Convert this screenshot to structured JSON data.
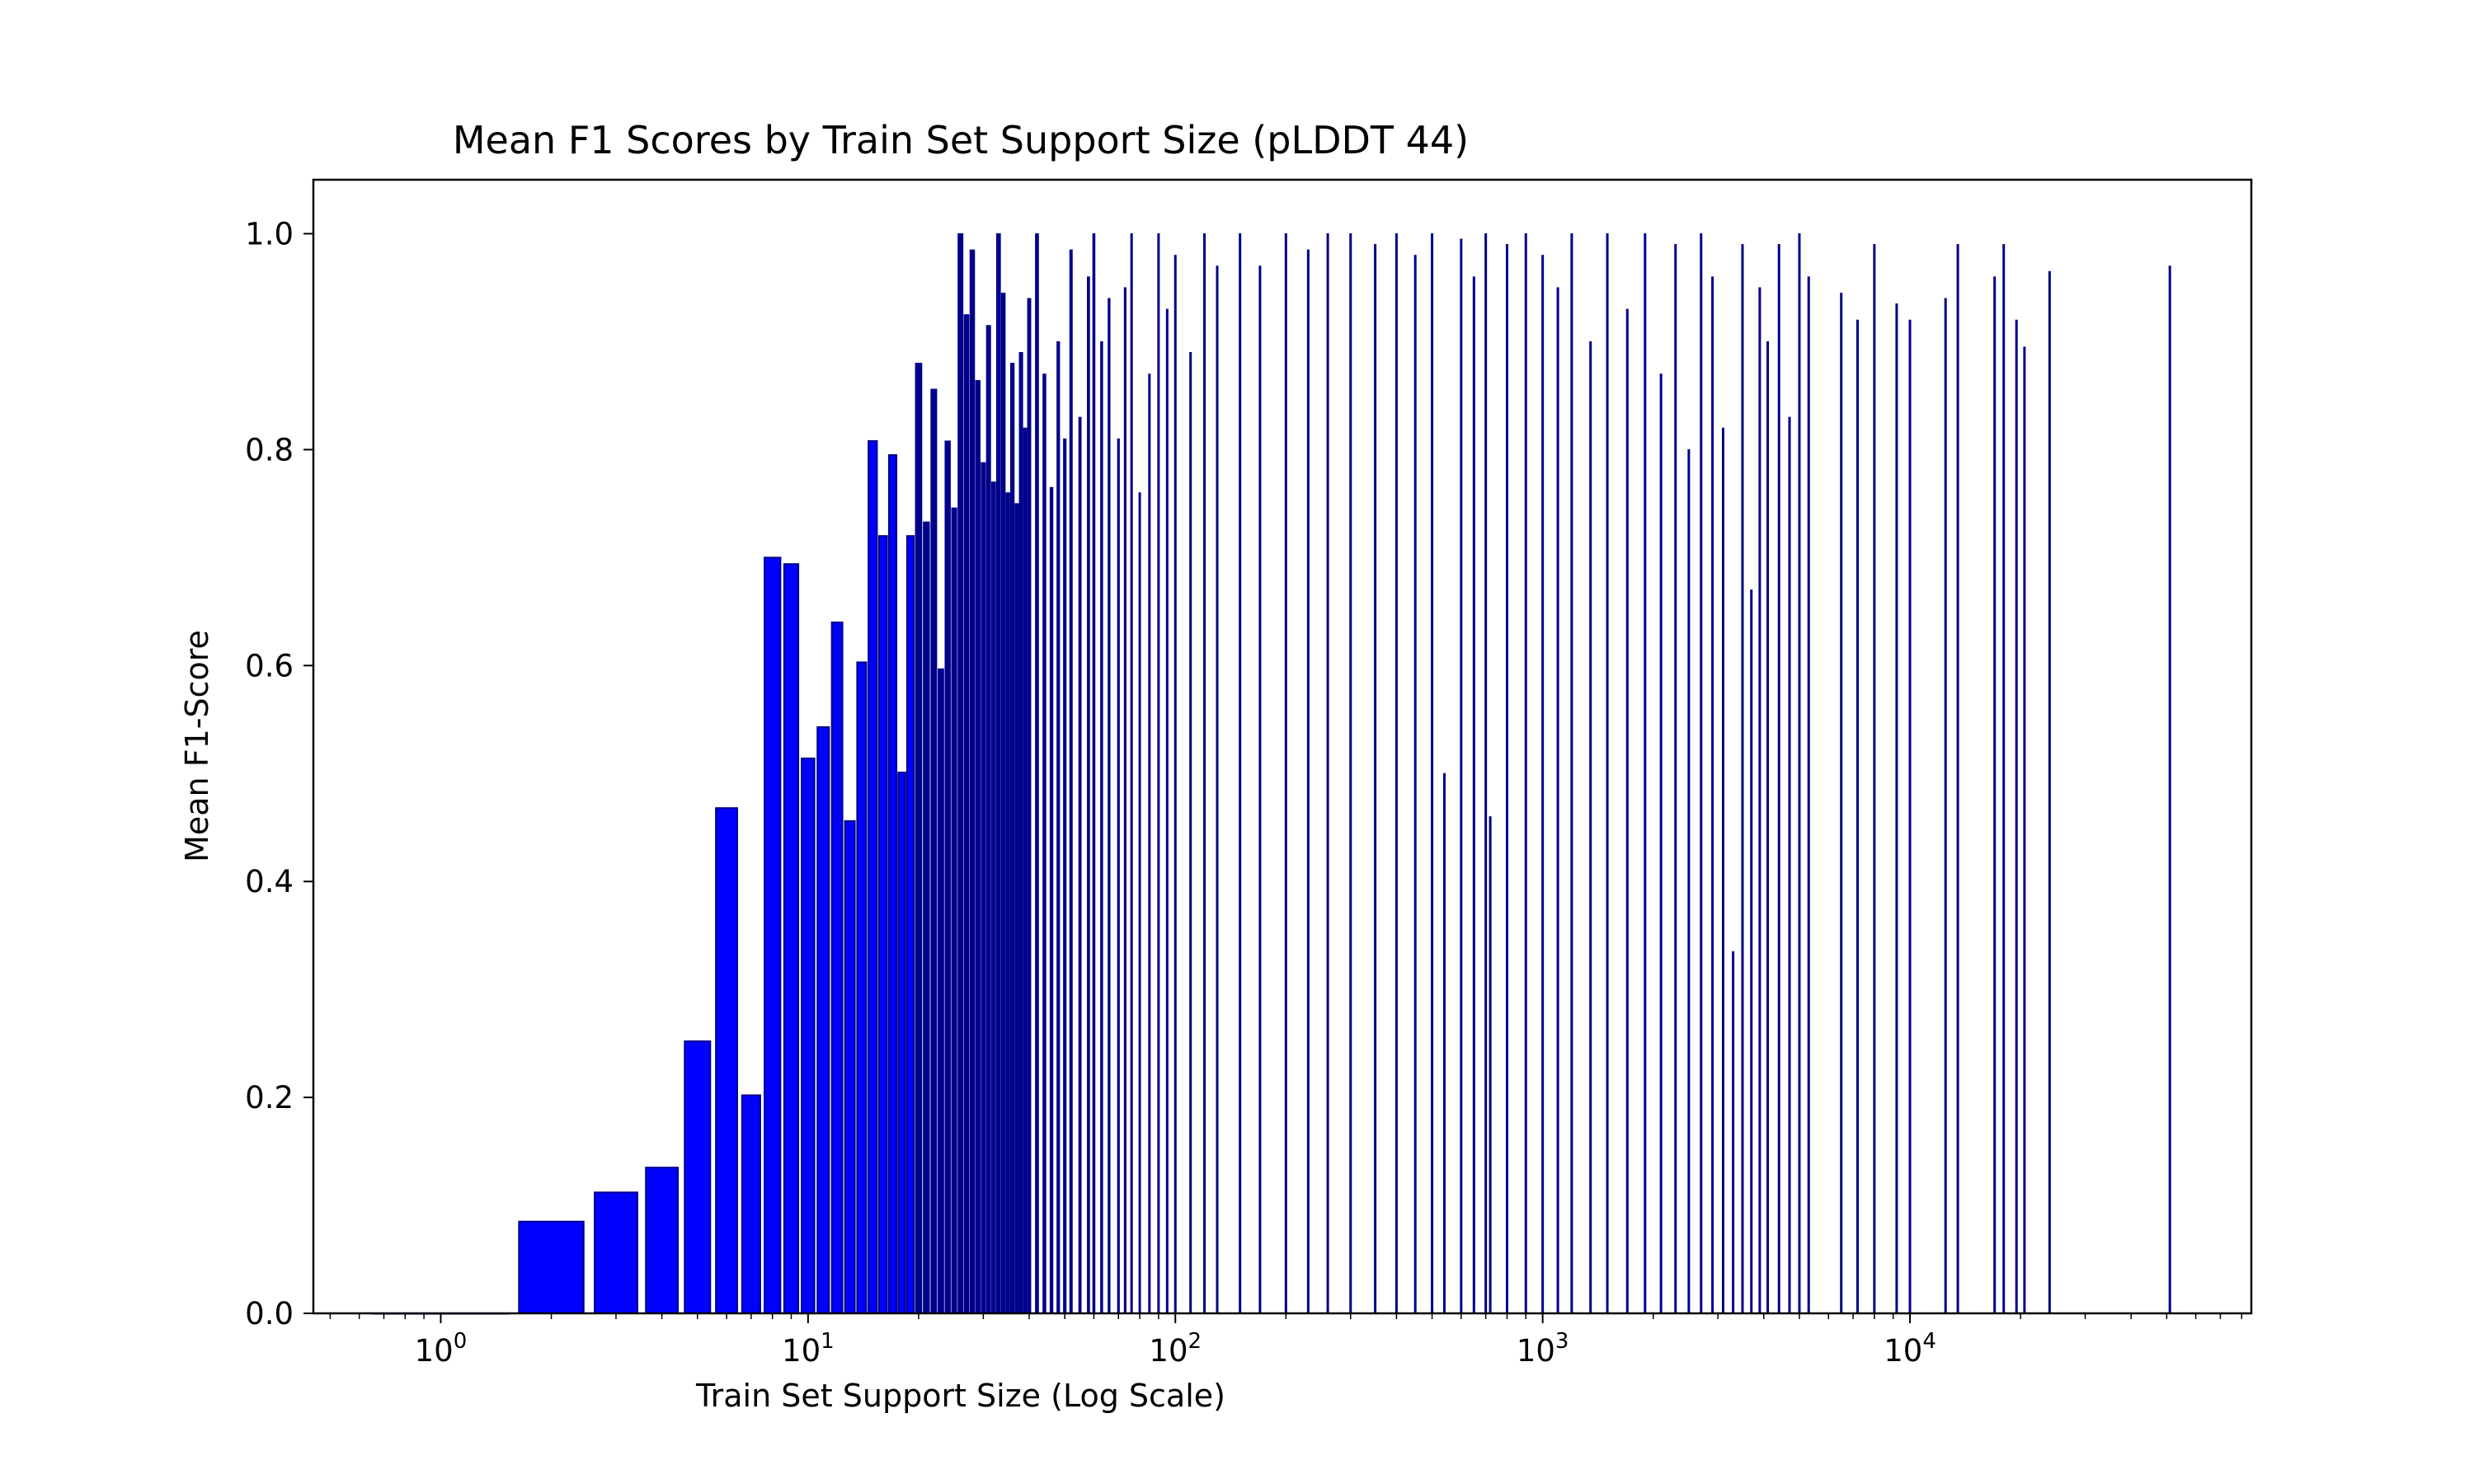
{
  "chart_data": {
    "type": "bar",
    "title": "Mean F1 Scores by Train Set Support Size (pLDDT 44)",
    "xlabel": "Train Set Support Size (Log Scale)",
    "ylabel": "Mean F1-Score",
    "xscale": "log",
    "xlim": [
      0.45,
      85000
    ],
    "ylim": [
      0.0,
      1.05
    ],
    "grid": false,
    "x_ticks": [
      {
        "base": "10",
        "exp": "0",
        "value": 1
      },
      {
        "base": "10",
        "exp": "1",
        "value": 10
      },
      {
        "base": "10",
        "exp": "2",
        "value": 100
      },
      {
        "base": "10",
        "exp": "3",
        "value": 1000
      },
      {
        "base": "10",
        "exp": "4",
        "value": 10000
      }
    ],
    "y_ticks": [
      "0.0",
      "0.2",
      "0.4",
      "0.6",
      "0.8",
      "1.0"
    ],
    "colors": {
      "bar_fill": "#0000ff",
      "bar_edge": "#00008b",
      "axes": "#000000"
    },
    "series": [
      {
        "values": [
          [
            1,
            0.0
          ],
          [
            2,
            0.085
          ],
          [
            3,
            0.112
          ],
          [
            4,
            0.135
          ],
          [
            5,
            0.252
          ],
          [
            6,
            0.468
          ],
          [
            7,
            0.202
          ],
          [
            8,
            0.7
          ],
          [
            9,
            0.694
          ],
          [
            10,
            0.514
          ],
          [
            11,
            0.543
          ],
          [
            12,
            0.64
          ],
          [
            13,
            0.456
          ],
          [
            14,
            0.603
          ],
          [
            15,
            0.808
          ],
          [
            16,
            0.72
          ],
          [
            17,
            0.795
          ],
          [
            18,
            0.501
          ],
          [
            19,
            0.72
          ],
          [
            20,
            0.88
          ],
          [
            21,
            0.733
          ],
          [
            22,
            0.856
          ],
          [
            23,
            0.597
          ],
          [
            24,
            0.808
          ],
          [
            25,
            0.746
          ],
          [
            26,
            1.0
          ],
          [
            27,
            0.925
          ],
          [
            28,
            0.985
          ],
          [
            29,
            0.864
          ],
          [
            30,
            0.788
          ],
          [
            31,
            0.915
          ],
          [
            32,
            0.77
          ],
          [
            33,
            1.0
          ],
          [
            34,
            0.945
          ],
          [
            35,
            0.76
          ],
          [
            36,
            0.88
          ],
          [
            37,
            0.75
          ],
          [
            38,
            0.89
          ],
          [
            39,
            0.82
          ],
          [
            40,
            0.94
          ],
          [
            42,
            1.0
          ],
          [
            44,
            0.87
          ],
          [
            46,
            0.765
          ],
          [
            48,
            0.9
          ],
          [
            50,
            0.81
          ],
          [
            52,
            0.985
          ],
          [
            55,
            0.83
          ],
          [
            58,
            0.96
          ],
          [
            60,
            1.0
          ],
          [
            63,
            0.9
          ],
          [
            66,
            0.94
          ],
          [
            70,
            0.81
          ],
          [
            73,
            0.95
          ],
          [
            76,
            1.0
          ],
          [
            80,
            0.76
          ],
          [
            85,
            0.87
          ],
          [
            90,
            1.0
          ],
          [
            95,
            0.93
          ],
          [
            100,
            0.98
          ],
          [
            110,
            0.89
          ],
          [
            120,
            1.0
          ],
          [
            130,
            0.97
          ],
          [
            150,
            1.0
          ],
          [
            170,
            0.97
          ],
          [
            200,
            1.0
          ],
          [
            230,
            0.985
          ],
          [
            260,
            1.0
          ],
          [
            300,
            1.0
          ],
          [
            350,
            0.99
          ],
          [
            400,
            1.0
          ],
          [
            450,
            0.98
          ],
          [
            500,
            1.0
          ],
          [
            540,
            0.5
          ],
          [
            600,
            0.995
          ],
          [
            650,
            0.96
          ],
          [
            700,
            1.0
          ],
          [
            720,
            0.46
          ],
          [
            800,
            0.99
          ],
          [
            900,
            1.0
          ],
          [
            1000,
            0.98
          ],
          [
            1100,
            0.95
          ],
          [
            1200,
            1.0
          ],
          [
            1350,
            0.9
          ],
          [
            1500,
            1.0
          ],
          [
            1700,
            0.93
          ],
          [
            1900,
            1.0
          ],
          [
            2100,
            0.87
          ],
          [
            2300,
            0.99
          ],
          [
            2500,
            0.8
          ],
          [
            2700,
            1.0
          ],
          [
            2900,
            0.96
          ],
          [
            3100,
            0.82
          ],
          [
            3300,
            0.335
          ],
          [
            3500,
            0.99
          ],
          [
            3700,
            0.67
          ],
          [
            3900,
            0.95
          ],
          [
            4100,
            0.9
          ],
          [
            4400,
            0.99
          ],
          [
            4700,
            0.83
          ],
          [
            5000,
            1.0
          ],
          [
            5300,
            0.96
          ],
          [
            6500,
            0.945
          ],
          [
            7200,
            0.92
          ],
          [
            8000,
            0.99
          ],
          [
            9200,
            0.935
          ],
          [
            10000,
            0.92
          ],
          [
            12500,
            0.94
          ],
          [
            13500,
            0.99
          ],
          [
            17000,
            0.96
          ],
          [
            18000,
            0.99
          ],
          [
            19500,
            0.92
          ],
          [
            20500,
            0.895
          ],
          [
            24000,
            0.965
          ],
          [
            51000,
            0.97
          ]
        ]
      }
    ]
  }
}
